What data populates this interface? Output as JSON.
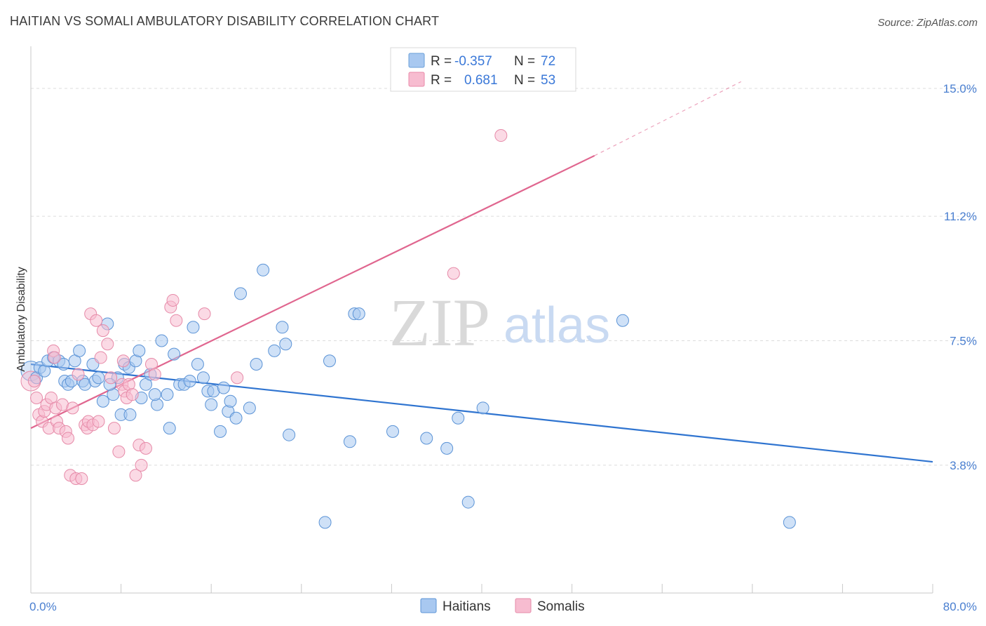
{
  "header": {
    "title": "HAITIAN VS SOMALI AMBULATORY DISABILITY CORRELATION CHART",
    "source": "Source: ZipAtlas.com"
  },
  "watermark": {
    "zip": "ZIP",
    "atlas": "atlas"
  },
  "legend": {
    "rows": [
      {
        "r_label": "R =",
        "r_value": "-0.357",
        "n_label": "N =",
        "n_value": "72",
        "color": "#a8c8f0",
        "stroke": "#6a9fd8"
      },
      {
        "r_label": "R =",
        "r_value": "0.681",
        "n_label": "N =",
        "n_value": "53",
        "color": "#f7bcd0",
        "stroke": "#e88aa8"
      }
    ]
  },
  "chart_data": {
    "type": "scatter",
    "title": "HAITIAN VS SOMALI AMBULATORY DISABILITY CORRELATION CHART",
    "xlabel": "",
    "ylabel": "Ambulatory Disability",
    "xlim": [
      0,
      80
    ],
    "ylim": [
      0,
      16.0
    ],
    "x_tick_labels": [
      "0.0%",
      "80.0%"
    ],
    "y_ticks": [
      {
        "value": 3.8,
        "label": "3.8%"
      },
      {
        "value": 7.5,
        "label": "7.5%"
      },
      {
        "value": 11.2,
        "label": "11.2%"
      },
      {
        "value": 15.0,
        "label": "15.0%"
      }
    ],
    "grid": true,
    "legend_position": "top-center",
    "series": [
      {
        "name": "Haitians",
        "color": "#a8c8f0",
        "stroke": "#5b93d6",
        "trend_color": "#2f74d0",
        "trend": {
          "x0": 0,
          "y0": 6.8,
          "x1": 80,
          "y1": 3.9
        },
        "points": [
          [
            0.5,
            6.4
          ],
          [
            0.8,
            6.7
          ],
          [
            1.2,
            6.6
          ],
          [
            1.5,
            6.9
          ],
          [
            2.0,
            7.0
          ],
          [
            2.5,
            6.9
          ],
          [
            2.9,
            6.8
          ],
          [
            3.0,
            6.3
          ],
          [
            3.3,
            6.2
          ],
          [
            3.6,
            6.3
          ],
          [
            3.9,
            6.9
          ],
          [
            4.3,
            7.2
          ],
          [
            4.6,
            6.3
          ],
          [
            4.8,
            6.2
          ],
          [
            5.5,
            6.8
          ],
          [
            5.7,
            6.3
          ],
          [
            6.0,
            6.4
          ],
          [
            6.4,
            5.7
          ],
          [
            6.8,
            8.0
          ],
          [
            7.3,
            5.9
          ],
          [
            7.7,
            6.4
          ],
          [
            8.0,
            5.3
          ],
          [
            8.3,
            6.8
          ],
          [
            8.7,
            6.7
          ],
          [
            8.8,
            5.3
          ],
          [
            9.3,
            6.9
          ],
          [
            9.6,
            7.2
          ],
          [
            9.8,
            5.8
          ],
          [
            10.2,
            6.2
          ],
          [
            10.6,
            6.5
          ],
          [
            11.2,
            5.6
          ],
          [
            11.6,
            7.5
          ],
          [
            12.1,
            5.9
          ],
          [
            12.3,
            4.9
          ],
          [
            12.7,
            7.1
          ],
          [
            13.2,
            6.2
          ],
          [
            13.6,
            6.2
          ],
          [
            14.1,
            6.3
          ],
          [
            14.4,
            7.9
          ],
          [
            14.8,
            6.8
          ],
          [
            15.3,
            6.4
          ],
          [
            15.7,
            6.0
          ],
          [
            16.0,
            5.6
          ],
          [
            16.2,
            6.0
          ],
          [
            16.8,
            4.8
          ],
          [
            17.1,
            6.1
          ],
          [
            17.5,
            5.4
          ],
          [
            17.7,
            5.7
          ],
          [
            18.2,
            5.2
          ],
          [
            18.6,
            8.9
          ],
          [
            19.4,
            5.5
          ],
          [
            20.0,
            6.8
          ],
          [
            20.6,
            9.6
          ],
          [
            21.6,
            7.2
          ],
          [
            22.3,
            7.9
          ],
          [
            22.6,
            7.4
          ],
          [
            22.9,
            4.7
          ],
          [
            26.5,
            6.9
          ],
          [
            28.3,
            4.5
          ],
          [
            28.7,
            8.3
          ],
          [
            29.1,
            8.3
          ],
          [
            32.1,
            4.8
          ],
          [
            35.1,
            4.6
          ],
          [
            36.9,
            4.3
          ],
          [
            37.9,
            5.2
          ],
          [
            38.8,
            2.7
          ],
          [
            40.1,
            5.5
          ],
          [
            52.5,
            8.1
          ],
          [
            26.1,
            2.1
          ],
          [
            67.3,
            2.1
          ],
          [
            11.0,
            5.9
          ],
          [
            7.0,
            6.2
          ]
        ]
      },
      {
        "name": "Somalis",
        "color": "#f7bcd0",
        "stroke": "#e68aa8",
        "trend_color": "#e0668f",
        "trend": {
          "x0": 0,
          "y0": 4.9,
          "x1": 50,
          "y1": 13.0
        },
        "trend_dashed": {
          "x0": 50,
          "y0": 13.0,
          "x1": 63,
          "y1": 15.2
        },
        "points": [
          [
            0.3,
            6.3
          ],
          [
            0.5,
            5.8
          ],
          [
            0.7,
            5.3
          ],
          [
            1.0,
            5.1
          ],
          [
            1.2,
            5.4
          ],
          [
            1.4,
            5.6
          ],
          [
            1.6,
            4.9
          ],
          [
            1.8,
            5.8
          ],
          [
            2.0,
            7.2
          ],
          [
            2.2,
            5.5
          ],
          [
            2.3,
            5.1
          ],
          [
            2.5,
            4.9
          ],
          [
            2.8,
            5.6
          ],
          [
            3.1,
            4.8
          ],
          [
            3.3,
            4.6
          ],
          [
            3.5,
            3.5
          ],
          [
            3.7,
            5.5
          ],
          [
            4.0,
            3.4
          ],
          [
            4.2,
            6.5
          ],
          [
            4.5,
            3.4
          ],
          [
            4.8,
            5.0
          ],
          [
            5.0,
            4.9
          ],
          [
            5.1,
            5.1
          ],
          [
            5.3,
            8.3
          ],
          [
            5.5,
            5.0
          ],
          [
            5.8,
            8.1
          ],
          [
            6.2,
            7.0
          ],
          [
            6.4,
            7.8
          ],
          [
            6.8,
            7.4
          ],
          [
            7.1,
            6.4
          ],
          [
            7.4,
            4.9
          ],
          [
            7.8,
            4.2
          ],
          [
            8.1,
            6.2
          ],
          [
            8.3,
            6.0
          ],
          [
            8.5,
            5.8
          ],
          [
            8.7,
            6.2
          ],
          [
            9.0,
            5.9
          ],
          [
            9.3,
            3.5
          ],
          [
            9.6,
            4.4
          ],
          [
            9.8,
            3.8
          ],
          [
            10.2,
            4.3
          ],
          [
            10.7,
            6.8
          ],
          [
            11.0,
            6.5
          ],
          [
            12.4,
            8.5
          ],
          [
            12.6,
            8.7
          ],
          [
            12.9,
            8.1
          ],
          [
            15.4,
            8.3
          ],
          [
            18.3,
            6.4
          ],
          [
            37.5,
            9.5
          ],
          [
            41.7,
            13.6
          ],
          [
            2.1,
            7.0
          ],
          [
            6.0,
            5.1
          ],
          [
            8.2,
            6.9
          ]
        ]
      }
    ]
  },
  "bottom_legend": [
    {
      "label": "Haitians",
      "color": "#a8c8f0",
      "stroke": "#5b93d6"
    },
    {
      "label": "Somalis",
      "color": "#f7bcd0",
      "stroke": "#e68aa8"
    }
  ]
}
